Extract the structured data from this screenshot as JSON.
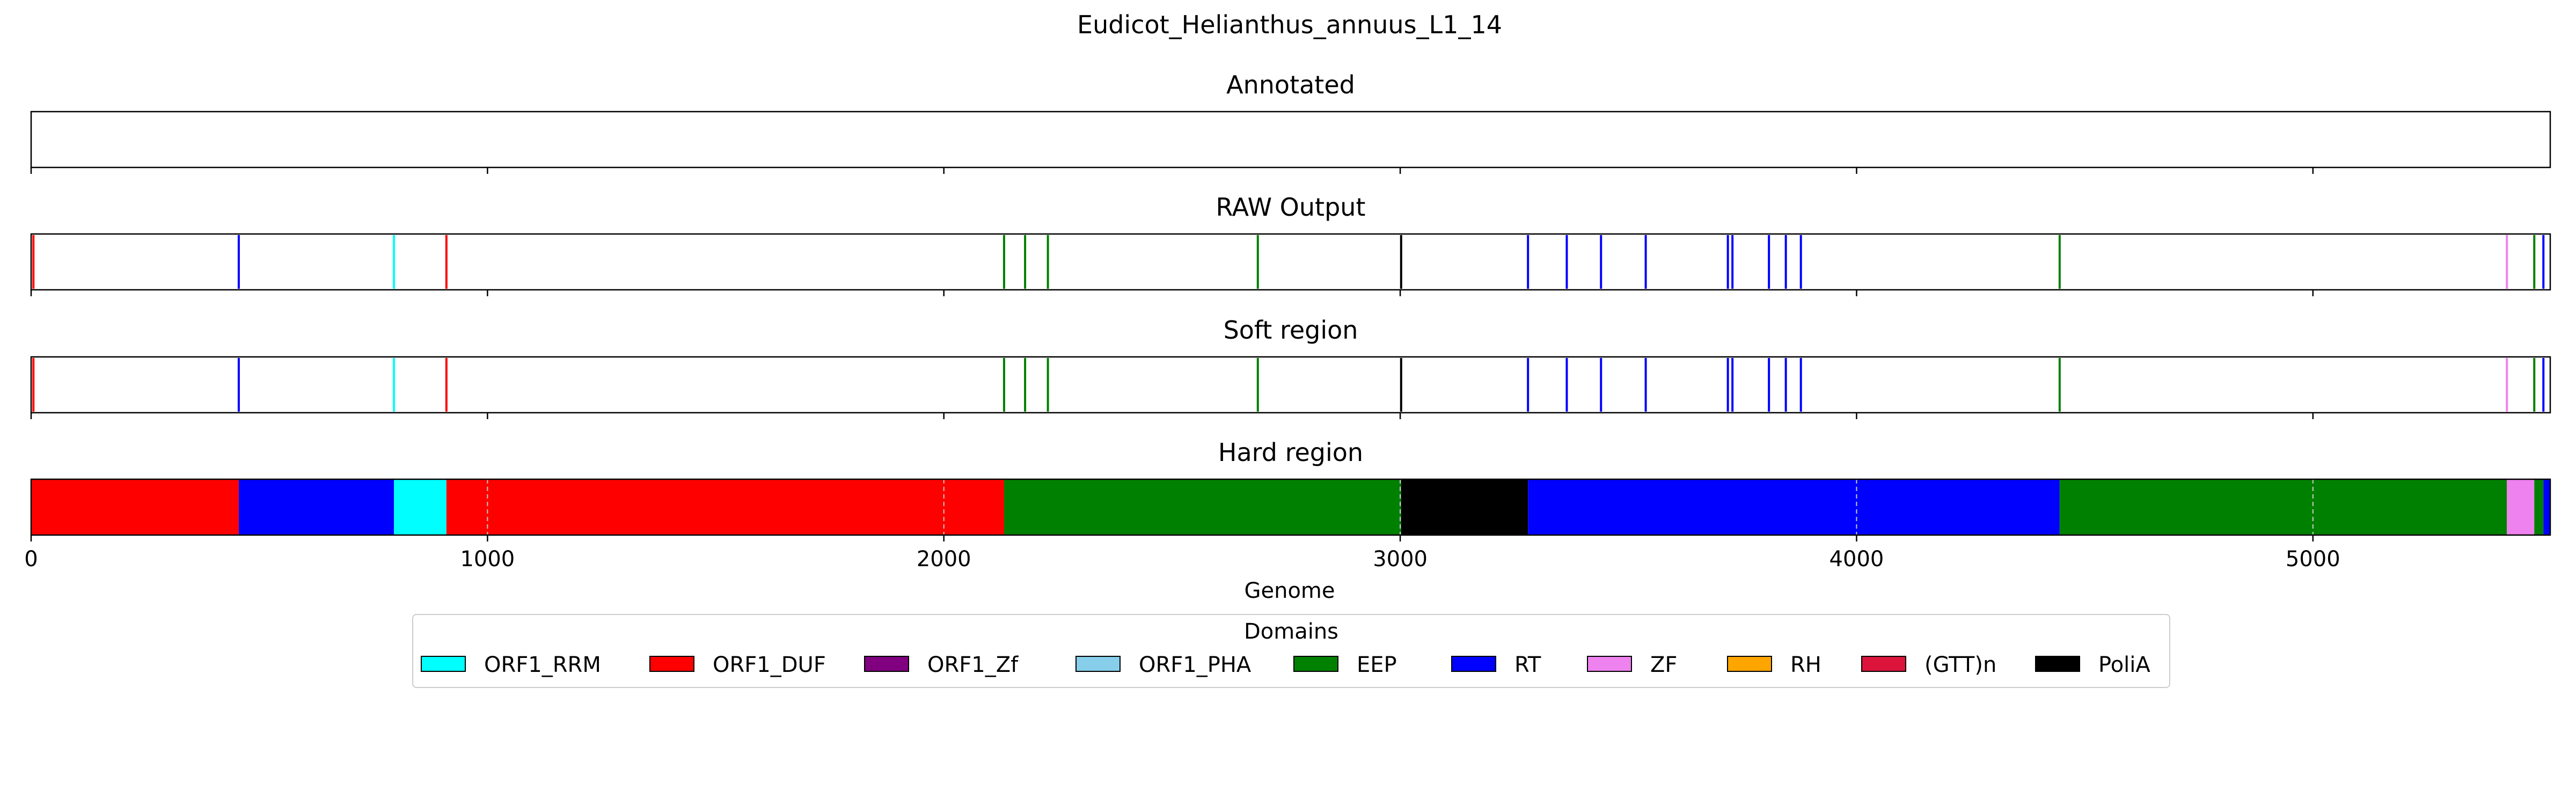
{
  "chart_data": {
    "type": "track",
    "title": "Eudicot_Helianthus_annuus_L1_14",
    "xlabel": "Genome",
    "xlim": [
      0,
      5520
    ],
    "xticks": [
      0,
      1000,
      2000,
      3000,
      4000,
      5000
    ],
    "grid": "vertical dashed",
    "legend": {
      "title": "Domains",
      "placement": "bottom-center",
      "entries": [
        {
          "name": "ORF1_RRM",
          "color": "#00ffff"
        },
        {
          "name": "ORF1_DUF",
          "color": "#ff0000"
        },
        {
          "name": "ORF1_Zf",
          "color": "#800080"
        },
        {
          "name": "ORF1_PHA",
          "color": "#87ceeb"
        },
        {
          "name": "EEP",
          "color": "#008000"
        },
        {
          "name": "RT",
          "color": "#0000ff"
        },
        {
          "name": "ZF",
          "color": "#ee82ee"
        },
        {
          "name": "RH",
          "color": "#ffa500"
        },
        {
          "name": "(GTT)n",
          "color": "#dc143c"
        },
        {
          "name": "PoliA",
          "color": "#000000"
        }
      ]
    },
    "panels": [
      {
        "title": "Annotated",
        "kind": "lines",
        "items": []
      },
      {
        "title": "RAW Output",
        "kind": "lines",
        "items": [
          {
            "x": 5,
            "domain": "ORF1_DUF"
          },
          {
            "x": 455,
            "domain": "RT"
          },
          {
            "x": 795,
            "domain": "ORF1_RRM"
          },
          {
            "x": 910,
            "domain": "ORF1_DUF"
          },
          {
            "x": 2132,
            "domain": "EEP"
          },
          {
            "x": 2178,
            "domain": "EEP"
          },
          {
            "x": 2228,
            "domain": "EEP"
          },
          {
            "x": 2688,
            "domain": "EEP"
          },
          {
            "x": 3002,
            "domain": "PoliA"
          },
          {
            "x": 3280,
            "domain": "RT"
          },
          {
            "x": 3365,
            "domain": "RT"
          },
          {
            "x": 3440,
            "domain": "RT"
          },
          {
            "x": 3538,
            "domain": "RT"
          },
          {
            "x": 3718,
            "domain": "RT"
          },
          {
            "x": 3728,
            "domain": "RT"
          },
          {
            "x": 3808,
            "domain": "RT"
          },
          {
            "x": 3845,
            "domain": "RT"
          },
          {
            "x": 3878,
            "domain": "RT"
          },
          {
            "x": 4445,
            "domain": "EEP"
          },
          {
            "x": 5425,
            "domain": "ZF"
          },
          {
            "x": 5485,
            "domain": "EEP"
          },
          {
            "x": 5505,
            "domain": "RT"
          }
        ]
      },
      {
        "title": "Soft region",
        "kind": "lines",
        "items": [
          {
            "x": 5,
            "domain": "ORF1_DUF"
          },
          {
            "x": 455,
            "domain": "RT"
          },
          {
            "x": 795,
            "domain": "ORF1_RRM"
          },
          {
            "x": 910,
            "domain": "ORF1_DUF"
          },
          {
            "x": 2132,
            "domain": "EEP"
          },
          {
            "x": 2178,
            "domain": "EEP"
          },
          {
            "x": 2228,
            "domain": "EEP"
          },
          {
            "x": 2688,
            "domain": "EEP"
          },
          {
            "x": 3002,
            "domain": "PoliA"
          },
          {
            "x": 3280,
            "domain": "RT"
          },
          {
            "x": 3365,
            "domain": "RT"
          },
          {
            "x": 3440,
            "domain": "RT"
          },
          {
            "x": 3538,
            "domain": "RT"
          },
          {
            "x": 3718,
            "domain": "RT"
          },
          {
            "x": 3728,
            "domain": "RT"
          },
          {
            "x": 3808,
            "domain": "RT"
          },
          {
            "x": 3845,
            "domain": "RT"
          },
          {
            "x": 3878,
            "domain": "RT"
          },
          {
            "x": 4445,
            "domain": "EEP"
          },
          {
            "x": 5425,
            "domain": "ZF"
          },
          {
            "x": 5485,
            "domain": "EEP"
          },
          {
            "x": 5505,
            "domain": "RT"
          }
        ]
      },
      {
        "title": "Hard region",
        "kind": "regions",
        "items": [
          {
            "start": 0,
            "end": 455,
            "domain": "ORF1_DUF"
          },
          {
            "start": 455,
            "end": 795,
            "domain": "RT"
          },
          {
            "start": 795,
            "end": 910,
            "domain": "ORF1_RRM"
          },
          {
            "start": 910,
            "end": 2132,
            "domain": "ORF1_DUF"
          },
          {
            "start": 2132,
            "end": 3002,
            "domain": "EEP"
          },
          {
            "start": 3002,
            "end": 3280,
            "domain": "PoliA"
          },
          {
            "start": 3280,
            "end": 4445,
            "domain": "RT"
          },
          {
            "start": 4445,
            "end": 5425,
            "domain": "EEP"
          },
          {
            "start": 5425,
            "end": 5485,
            "domain": "ZF"
          },
          {
            "start": 5485,
            "end": 5505,
            "domain": "EEP"
          },
          {
            "start": 5505,
            "end": 5520,
            "domain": "RT"
          }
        ]
      }
    ]
  }
}
